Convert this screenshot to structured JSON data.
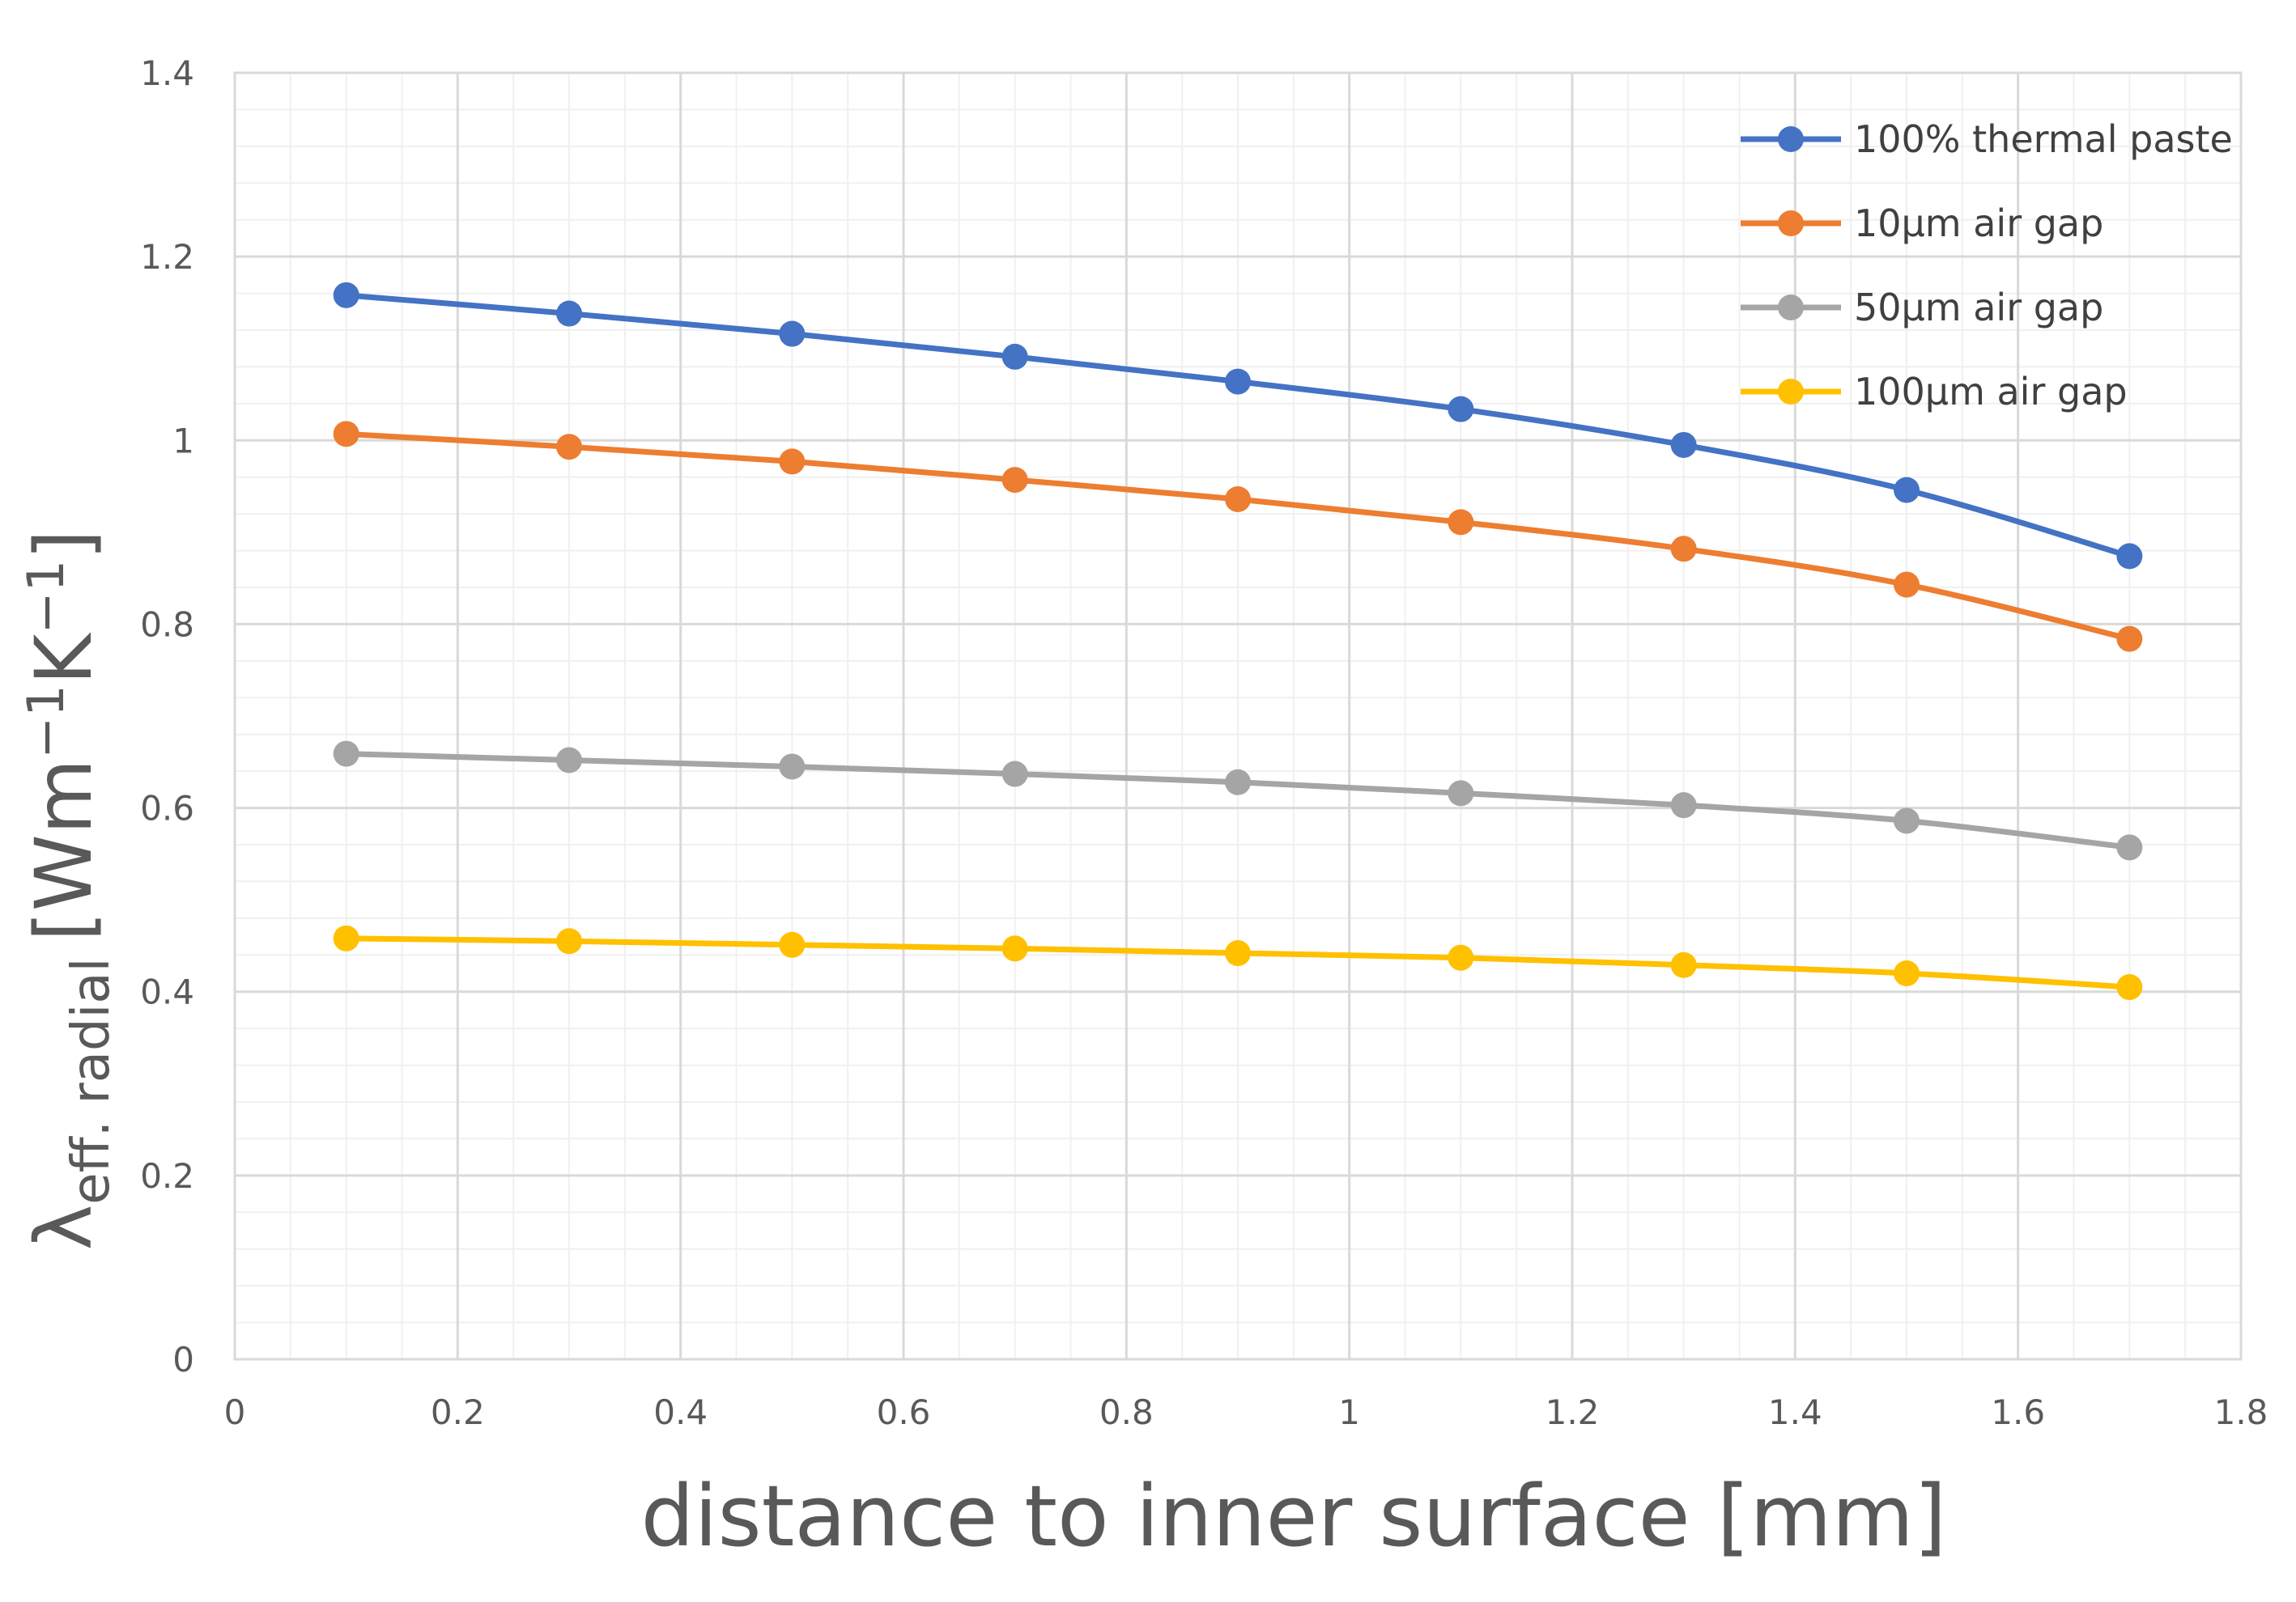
{
  "chart_data": {
    "type": "line",
    "title": "",
    "xlabel": "distance to inner surface [mm]",
    "ylabel": {
      "symbol": "λ",
      "subscript": "eff. radial",
      "units_open": "[Wm",
      "exp1": "−1",
      "units_mid": "K",
      "exp2": "−1",
      "units_close": "]"
    },
    "xlim": [
      0,
      1.8
    ],
    "ylim": [
      0,
      1.4
    ],
    "xticks": [
      "0",
      "0.2",
      "0.4",
      "0.6",
      "0.8",
      "1",
      "1.2",
      "1.4",
      "1.6",
      "1.8"
    ],
    "yticks": [
      "0",
      "0.2",
      "0.4",
      "0.6",
      "0.8",
      "1",
      "1.2",
      "1.4"
    ],
    "grid": true,
    "legend_position": "top-right",
    "x": [
      0.1,
      0.3,
      0.5,
      0.7,
      0.9,
      1.1,
      1.3,
      1.5,
      1.7
    ],
    "series": [
      {
        "name": "100% thermal paste",
        "color": "#4472C4",
        "values": [
          1.158,
          1.138,
          1.116,
          1.091,
          1.064,
          1.034,
          0.995,
          0.946,
          0.874
        ]
      },
      {
        "name": "10µm air gap",
        "color": "#ED7D31",
        "values": [
          1.007,
          0.993,
          0.977,
          0.957,
          0.936,
          0.911,
          0.882,
          0.843,
          0.784
        ]
      },
      {
        "name": "50µm air gap",
        "color": "#A5A5A5",
        "values": [
          0.659,
          0.652,
          0.645,
          0.637,
          0.628,
          0.616,
          0.603,
          0.586,
          0.557
        ]
      },
      {
        "name": "100µm air gap",
        "color": "#FFC000",
        "values": [
          0.458,
          0.455,
          0.451,
          0.447,
          0.442,
          0.437,
          0.429,
          0.42,
          0.405
        ]
      }
    ]
  }
}
